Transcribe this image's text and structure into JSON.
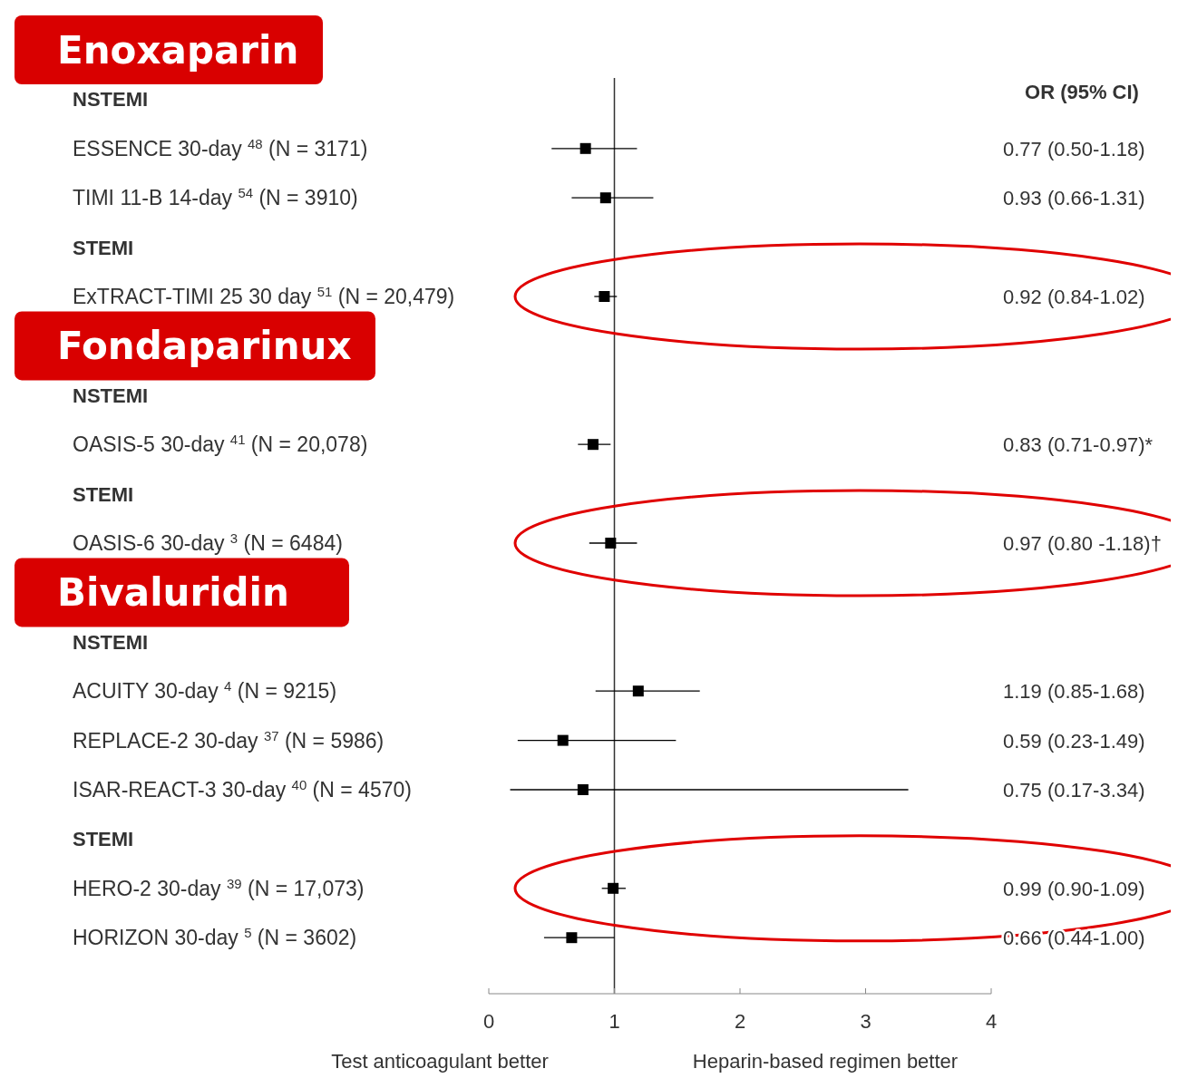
{
  "chart_data": {
    "type": "scatter",
    "orientation": "horizontal",
    "categories": [
      null,
      "NSTEMI",
      "ESSENCE 30-day $^{48}$ (N = 3171)",
      "TIMI 11-B 14-day $^{54}$ (N = 3910)",
      "STEMI",
      "ExTRACT-TIMI 25 30 day $^{51}$ (N = 20,479)",
      null,
      "NSTEMI",
      "OASIS-5 30-day $^{41}$ (N = 20,078)",
      "STEMI",
      "OASIS-6 30-day $^{3}$ (N = 6484)",
      null,
      "NSTEMI",
      "ACUITY 30-day $^{4}$ (N = 9215)",
      "REPLACE-2 30-day $^{37}$ (N = 5986)",
      "ISAR-REACT-3 30-day $^{40}$ (N = 4570)",
      "STEMI",
      "HERO-2 30-day $^{39}$ (N = 17,073)",
      "HORIZON 30-day $^{5}$ (N = 3602)"
    ],
    "values": [
      null,
      null,
      0.77,
      0.93,
      null,
      0.92,
      null,
      null,
      0.83,
      null,
      0.97,
      null,
      null,
      1.19,
      0.59,
      0.75,
      null,
      0.99,
      0.66
    ],
    "errors": [
      null,
      null,
      [
        0.5,
        1.18
      ],
      [
        0.66,
        1.31
      ],
      null,
      [
        0.84,
        1.02
      ],
      null,
      null,
      [
        0.71,
        0.97
      ],
      null,
      [
        0.8,
        1.18
      ],
      null,
      null,
      [
        0.85,
        1.68
      ],
      [
        0.23,
        1.49
      ],
      [
        0.17,
        3.34
      ],
      null,
      [
        0.9,
        1.09
      ],
      [
        0.44,
        1.0
      ]
    ],
    "color": "#000000",
    "marker": "square",
    "xlim": [
      0,
      4
    ],
    "xticks": [
      0,
      1,
      2,
      3,
      4
    ],
    "ref_lines": [
      {
        "axis": "x",
        "value": 1,
        "color": "#333333"
      }
    ],
    "annotations": [
      "OR (95% CI)",
      "Test anticoagulant better",
      "Heparin-based regimen better",
      "Enoxaparin",
      "Fondaparinux",
      "Bivaluridin",
      "0.77 (0.50-1.18)",
      "0.93 (0.66-1.31)",
      "0.92 (0.84-1.02)",
      "0.83 (0.71-0.97)*",
      "0.97 (0.80 -1.18)†",
      "1.19 (0.85-1.68)",
      "0.59 (0.23-1.49)",
      "0.75 (0.17-3.34)",
      "0.99 (0.90-1.09)",
      "0.66 (0.44-1.00)"
    ]
  }
}
